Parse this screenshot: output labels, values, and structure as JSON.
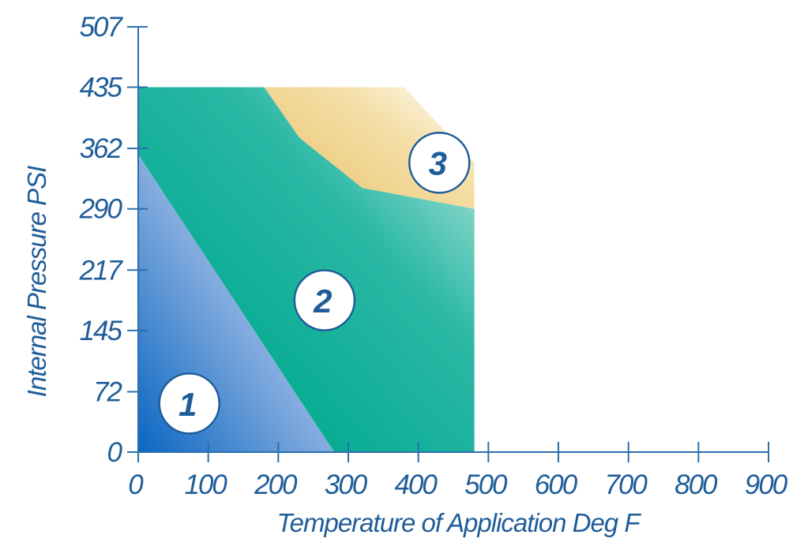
{
  "chart_data": {
    "type": "area",
    "xlabel": "Temperature of Application Deg F",
    "ylabel": "Internal Pressure PSI",
    "x_ticks": [
      0,
      100,
      200,
      300,
      400,
      500,
      600,
      700,
      800,
      900
    ],
    "y_ticks": [
      0,
      72,
      145,
      217,
      290,
      362,
      435,
      507
    ],
    "xlim": [
      0,
      900
    ],
    "ylim": [
      0,
      507
    ],
    "zones": [
      {
        "label": "1",
        "color": "#1f6fc0",
        "polygon": [
          [
            0,
            0
          ],
          [
            0,
            355
          ],
          [
            280,
            0
          ]
        ],
        "label_pos": [
          73,
          58
        ]
      },
      {
        "label": "2",
        "color": "#00b3a0",
        "polygon": [
          [
            0,
            355
          ],
          [
            0,
            435
          ],
          [
            180,
            435
          ],
          [
            230,
            375
          ],
          [
            320,
            315
          ],
          [
            480,
            290
          ],
          [
            480,
            0
          ],
          [
            280,
            0
          ]
        ],
        "label_pos": [
          266,
          181
        ]
      },
      {
        "label": "3",
        "color": "#f0c860",
        "polygon": [
          [
            180,
            435
          ],
          [
            380,
            435
          ],
          [
            480,
            345
          ],
          [
            480,
            290
          ],
          [
            320,
            315
          ],
          [
            230,
            375
          ]
        ],
        "label_pos": [
          430,
          345
        ]
      }
    ]
  }
}
